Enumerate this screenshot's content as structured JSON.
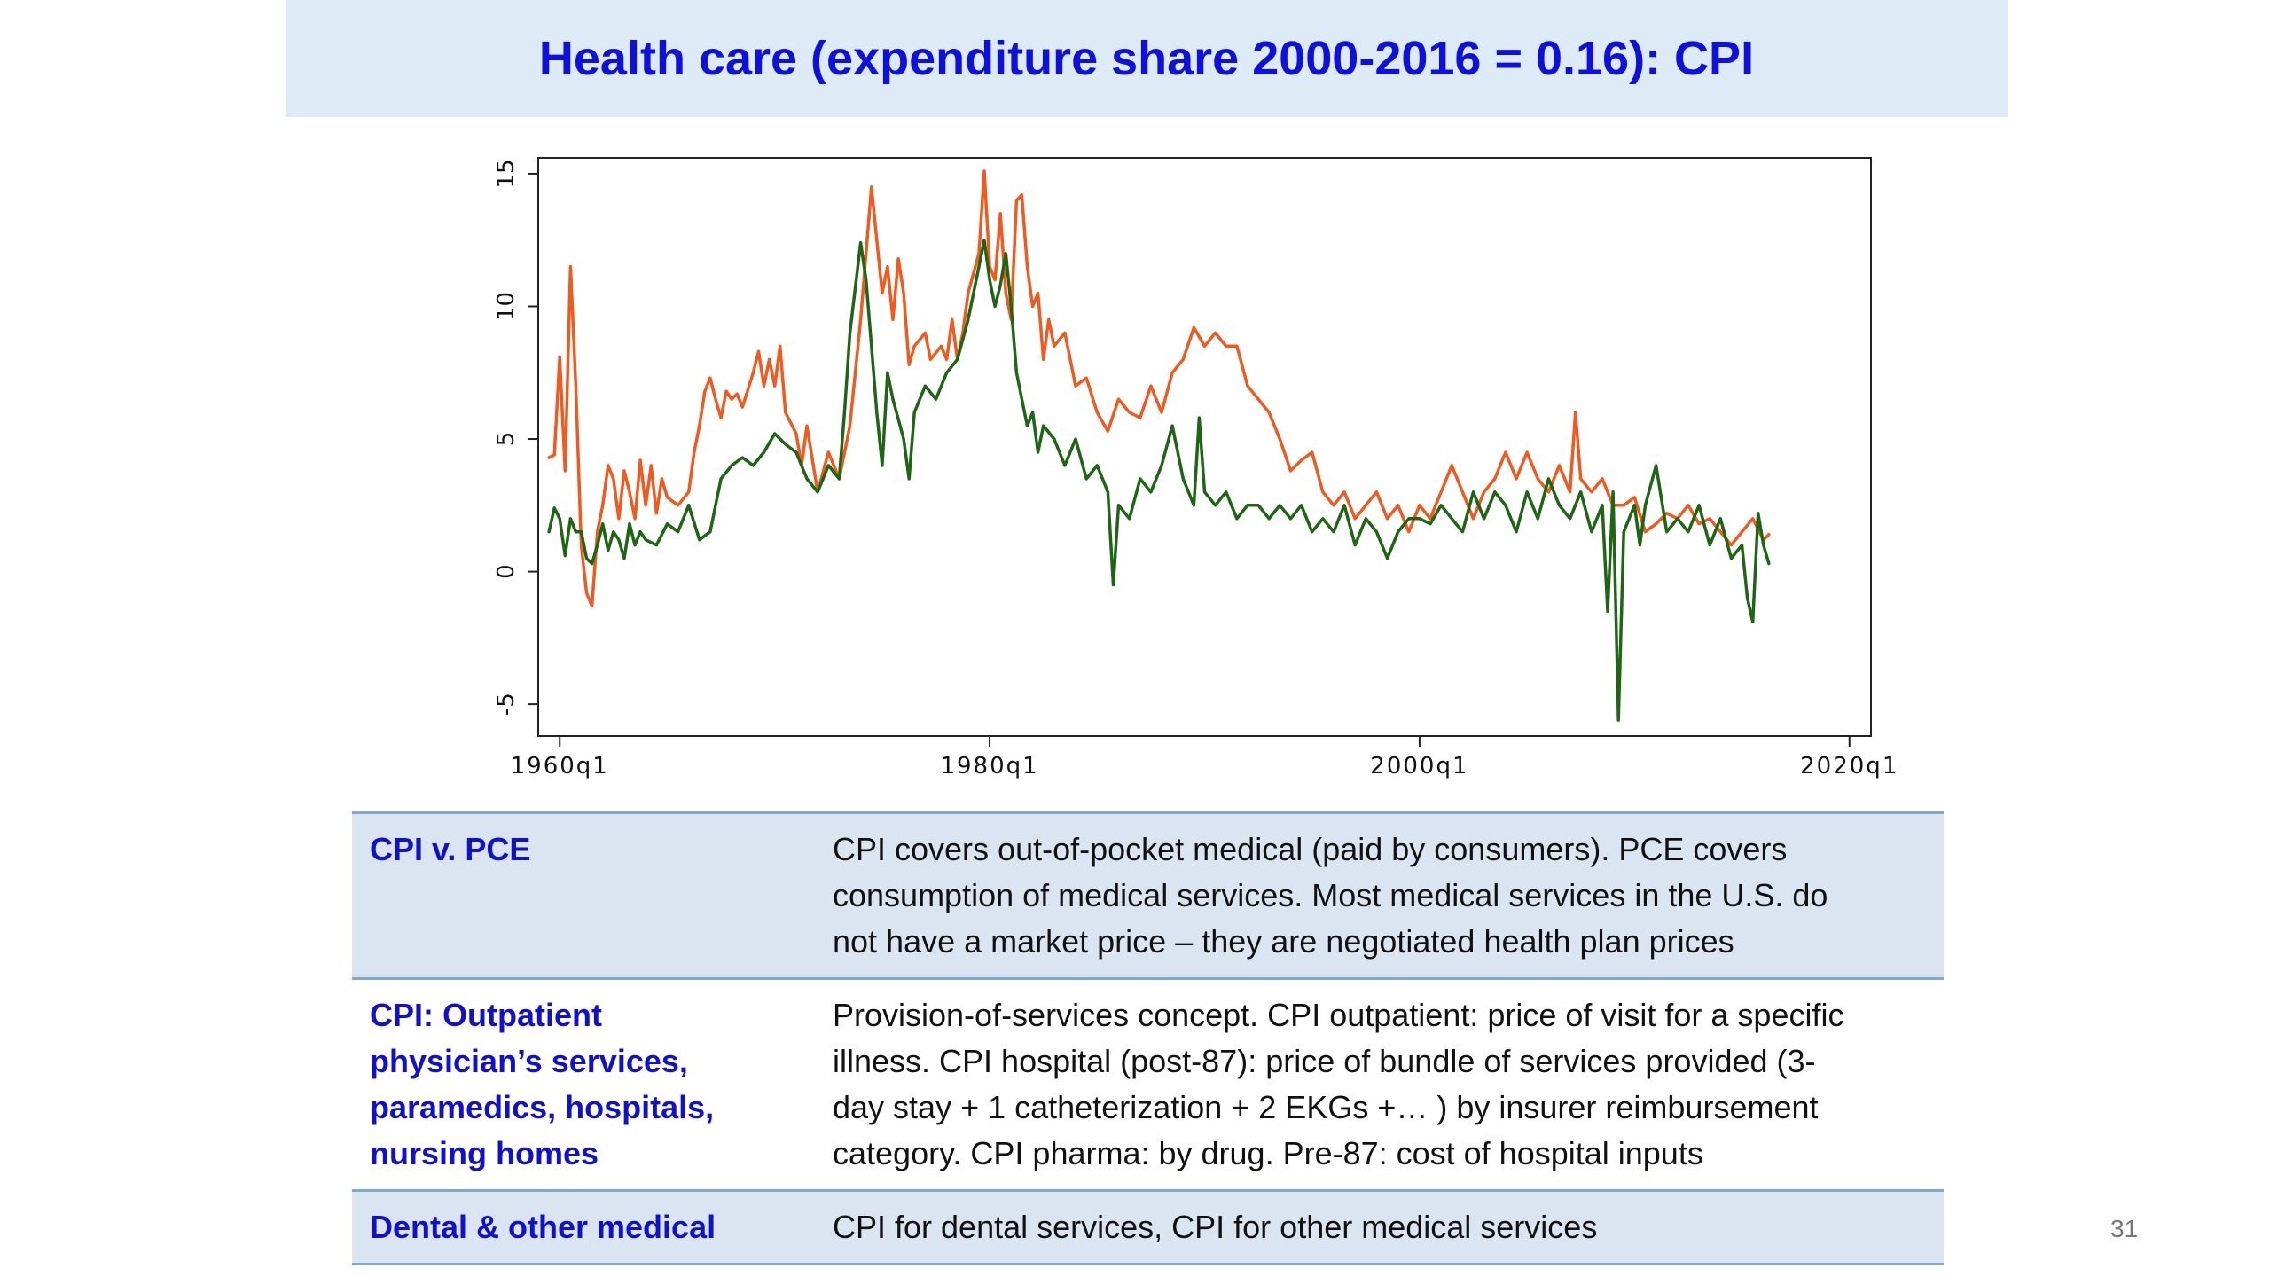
{
  "title": "Health care (expenditure share 2000-2016 = 0.16): CPI",
  "page_number": "31",
  "table": [
    {
      "label_lines": [
        "CPI v. PCE"
      ],
      "description_lines": [
        "CPI covers out-of-pocket medical (paid by consumers). PCE covers",
        "consumption of medical services. Most medical services in the U.S. do",
        "not have a market price – they are negotiated health plan prices"
      ]
    },
    {
      "label_lines": [
        "CPI: Outpatient",
        "physician’s services,",
        "paramedics, hospitals,",
        "nursing homes"
      ],
      "description_lines": [
        "Provision-of-services concept. CPI outpatient: price of visit for a specific",
        "illness. CPI hospital (post-87): price of bundle of services provided (3-",
        "day stay + 1 catheterization + 2 EKGs +… ) by insurer reimbursement",
        "category. CPI pharma: by drug. Pre-87: cost of hospital inputs"
      ]
    },
    {
      "label_lines": [
        "Dental &  other medical"
      ],
      "description_lines": [
        "CPI for dental services, CPI for other medical services"
      ]
    }
  ],
  "chart_data": {
    "type": "line",
    "title": "",
    "xlabel": "",
    "ylabel": "",
    "xlim": [
      1959.0,
      2021.0
    ],
    "ylim": [
      -6.2,
      15.6
    ],
    "x_ticks": [
      1960,
      1980,
      2000,
      2020
    ],
    "x_tick_labels": [
      "1960q1",
      "1980q1",
      "2000q1",
      "2020q1"
    ],
    "y_ticks": [
      -5,
      0,
      5,
      10,
      15
    ],
    "y_tick_labels": [
      "-5",
      "0",
      "5",
      "10",
      "15"
    ],
    "grid": false,
    "legend": "none",
    "series": [
      {
        "color": "#f05a1e",
        "points": [
          [
            1959.5,
            4.3
          ],
          [
            1959.75,
            4.4
          ],
          [
            1960.0,
            8.1
          ],
          [
            1960.25,
            3.8
          ],
          [
            1960.5,
            11.5
          ],
          [
            1960.75,
            7.0
          ],
          [
            1961.0,
            1.0
          ],
          [
            1961.25,
            -0.8
          ],
          [
            1961.5,
            -1.3
          ],
          [
            1961.75,
            1.5
          ],
          [
            1962.0,
            2.5
          ],
          [
            1962.25,
            4.0
          ],
          [
            1962.5,
            3.5
          ],
          [
            1962.75,
            2.0
          ],
          [
            1963.0,
            3.8
          ],
          [
            1963.25,
            3.0
          ],
          [
            1963.5,
            2.0
          ],
          [
            1963.75,
            4.2
          ],
          [
            1964.0,
            2.5
          ],
          [
            1964.25,
            4.0
          ],
          [
            1964.5,
            2.2
          ],
          [
            1964.75,
            3.5
          ],
          [
            1965.0,
            2.8
          ],
          [
            1965.5,
            2.5
          ],
          [
            1966.0,
            3.0
          ],
          [
            1966.25,
            4.5
          ],
          [
            1966.5,
            5.5
          ],
          [
            1966.75,
            6.8
          ],
          [
            1967.0,
            7.3
          ],
          [
            1967.25,
            6.5
          ],
          [
            1967.5,
            5.8
          ],
          [
            1967.75,
            6.8
          ],
          [
            1968.0,
            6.5
          ],
          [
            1968.25,
            6.7
          ],
          [
            1968.5,
            6.2
          ],
          [
            1969.0,
            7.5
          ],
          [
            1969.25,
            8.3
          ],
          [
            1969.5,
            7.0
          ],
          [
            1969.75,
            8.0
          ],
          [
            1970.0,
            7.0
          ],
          [
            1970.25,
            8.5
          ],
          [
            1970.5,
            6.0
          ],
          [
            1971.0,
            5.2
          ],
          [
            1971.25,
            4.0
          ],
          [
            1971.5,
            5.5
          ],
          [
            1972.0,
            3.0
          ],
          [
            1972.5,
            4.5
          ],
          [
            1973.0,
            3.5
          ],
          [
            1973.5,
            5.5
          ],
          [
            1974.0,
            9.5
          ],
          [
            1974.25,
            12.0
          ],
          [
            1974.5,
            14.5
          ],
          [
            1974.75,
            12.5
          ],
          [
            1975.0,
            10.5
          ],
          [
            1975.25,
            11.5
          ],
          [
            1975.5,
            9.5
          ],
          [
            1975.75,
            11.8
          ],
          [
            1976.0,
            10.5
          ],
          [
            1976.25,
            7.8
          ],
          [
            1976.5,
            8.5
          ],
          [
            1977.0,
            9.0
          ],
          [
            1977.25,
            8.0
          ],
          [
            1977.75,
            8.5
          ],
          [
            1978.0,
            8.0
          ],
          [
            1978.25,
            9.5
          ],
          [
            1978.5,
            8.0
          ],
          [
            1978.75,
            9.0
          ],
          [
            1979.0,
            10.5
          ],
          [
            1979.5,
            12.0
          ],
          [
            1979.75,
            15.1
          ],
          [
            1980.0,
            11.5
          ],
          [
            1980.25,
            11.0
          ],
          [
            1980.5,
            13.5
          ],
          [
            1980.75,
            10.5
          ],
          [
            1981.0,
            9.5
          ],
          [
            1981.25,
            14.0
          ],
          [
            1981.5,
            14.2
          ],
          [
            1981.75,
            11.5
          ],
          [
            1982.0,
            10.0
          ],
          [
            1982.25,
            10.5
          ],
          [
            1982.5,
            8.0
          ],
          [
            1982.75,
            9.5
          ],
          [
            1983.0,
            8.5
          ],
          [
            1983.5,
            9.0
          ],
          [
            1984.0,
            7.0
          ],
          [
            1984.5,
            7.3
          ],
          [
            1985.0,
            6.0
          ],
          [
            1985.5,
            5.3
          ],
          [
            1986.0,
            6.5
          ],
          [
            1986.5,
            6.0
          ],
          [
            1987.0,
            5.8
          ],
          [
            1987.5,
            7.0
          ],
          [
            1988.0,
            6.0
          ],
          [
            1988.5,
            7.5
          ],
          [
            1989.0,
            8.0
          ],
          [
            1989.5,
            9.2
          ],
          [
            1990.0,
            8.5
          ],
          [
            1990.5,
            9.0
          ],
          [
            1991.0,
            8.5
          ],
          [
            1991.5,
            8.5
          ],
          [
            1992.0,
            7.0
          ],
          [
            1992.5,
            6.5
          ],
          [
            1993.0,
            6.0
          ],
          [
            1993.5,
            5.0
          ],
          [
            1994.0,
            3.8
          ],
          [
            1994.5,
            4.2
          ],
          [
            1995.0,
            4.5
          ],
          [
            1995.5,
            3.0
          ],
          [
            1996.0,
            2.5
          ],
          [
            1996.5,
            3.0
          ],
          [
            1997.0,
            2.0
          ],
          [
            1997.5,
            2.5
          ],
          [
            1998.0,
            3.0
          ],
          [
            1998.5,
            2.0
          ],
          [
            1999.0,
            2.5
          ],
          [
            1999.5,
            1.5
          ],
          [
            2000.0,
            2.5
          ],
          [
            2000.5,
            2.0
          ],
          [
            2001.0,
            3.0
          ],
          [
            2001.5,
            4.0
          ],
          [
            2002.0,
            3.0
          ],
          [
            2002.5,
            2.0
          ],
          [
            2003.0,
            3.0
          ],
          [
            2003.5,
            3.5
          ],
          [
            2004.0,
            4.5
          ],
          [
            2004.5,
            3.5
          ],
          [
            2005.0,
            4.5
          ],
          [
            2005.5,
            3.5
          ],
          [
            2006.0,
            3.0
          ],
          [
            2006.5,
            4.0
          ],
          [
            2007.0,
            3.0
          ],
          [
            2007.25,
            6.0
          ],
          [
            2007.5,
            3.5
          ],
          [
            2008.0,
            3.0
          ],
          [
            2008.5,
            3.5
          ],
          [
            2009.0,
            2.5
          ],
          [
            2009.5,
            2.5
          ],
          [
            2010.0,
            2.8
          ],
          [
            2010.5,
            1.5
          ],
          [
            2011.0,
            1.8
          ],
          [
            2011.5,
            2.2
          ],
          [
            2012.0,
            2.0
          ],
          [
            2012.5,
            2.5
          ],
          [
            2013.0,
            1.8
          ],
          [
            2013.5,
            2.0
          ],
          [
            2014.0,
            1.5
          ],
          [
            2014.5,
            1.0
          ],
          [
            2015.0,
            1.5
          ],
          [
            2015.5,
            2.0
          ],
          [
            2016.0,
            1.2
          ],
          [
            2016.25,
            1.4
          ]
        ]
      },
      {
        "color": "#1e6614",
        "points": [
          [
            1959.5,
            1.5
          ],
          [
            1959.75,
            2.4
          ],
          [
            1960.0,
            2.0
          ],
          [
            1960.25,
            0.6
          ],
          [
            1960.5,
            2.0
          ],
          [
            1960.75,
            1.5
          ],
          [
            1961.0,
            1.5
          ],
          [
            1961.25,
            0.5
          ],
          [
            1961.5,
            0.3
          ],
          [
            1961.75,
            1.0
          ],
          [
            1962.0,
            1.8
          ],
          [
            1962.25,
            0.8
          ],
          [
            1962.5,
            1.5
          ],
          [
            1962.75,
            1.2
          ],
          [
            1963.0,
            0.5
          ],
          [
            1963.25,
            1.8
          ],
          [
            1963.5,
            1.0
          ],
          [
            1963.75,
            1.5
          ],
          [
            1964.0,
            1.2
          ],
          [
            1964.5,
            1.0
          ],
          [
            1965.0,
            1.8
          ],
          [
            1965.5,
            1.5
          ],
          [
            1966.0,
            2.5
          ],
          [
            1966.5,
            1.2
          ],
          [
            1967.0,
            1.5
          ],
          [
            1967.5,
            3.5
          ],
          [
            1968.0,
            4.0
          ],
          [
            1968.5,
            4.3
          ],
          [
            1969.0,
            4.0
          ],
          [
            1969.5,
            4.5
          ],
          [
            1970.0,
            5.2
          ],
          [
            1970.5,
            4.8
          ],
          [
            1971.0,
            4.5
          ],
          [
            1971.5,
            3.5
          ],
          [
            1972.0,
            3.0
          ],
          [
            1972.5,
            4.0
          ],
          [
            1973.0,
            3.5
          ],
          [
            1973.25,
            6.0
          ],
          [
            1973.5,
            9.0
          ],
          [
            1974.0,
            12.4
          ],
          [
            1974.25,
            11.0
          ],
          [
            1974.5,
            8.5
          ],
          [
            1974.75,
            6.0
          ],
          [
            1975.0,
            4.0
          ],
          [
            1975.25,
            7.5
          ],
          [
            1975.5,
            6.5
          ],
          [
            1976.0,
            5.0
          ],
          [
            1976.25,
            3.5
          ],
          [
            1976.5,
            6.0
          ],
          [
            1977.0,
            7.0
          ],
          [
            1977.5,
            6.5
          ],
          [
            1978.0,
            7.5
          ],
          [
            1978.5,
            8.0
          ],
          [
            1979.0,
            9.5
          ],
          [
            1979.5,
            11.5
          ],
          [
            1979.75,
            12.5
          ],
          [
            1980.0,
            11.0
          ],
          [
            1980.25,
            10.0
          ],
          [
            1980.5,
            10.8
          ],
          [
            1980.75,
            12.0
          ],
          [
            1981.0,
            10.0
          ],
          [
            1981.25,
            7.5
          ],
          [
            1981.5,
            6.5
          ],
          [
            1981.75,
            5.5
          ],
          [
            1982.0,
            6.0
          ],
          [
            1982.25,
            4.5
          ],
          [
            1982.5,
            5.5
          ],
          [
            1983.0,
            5.0
          ],
          [
            1983.5,
            4.0
          ],
          [
            1984.0,
            5.0
          ],
          [
            1984.5,
            3.5
          ],
          [
            1985.0,
            4.0
          ],
          [
            1985.5,
            3.0
          ],
          [
            1985.75,
            -0.5
          ],
          [
            1986.0,
            2.5
          ],
          [
            1986.5,
            2.0
          ],
          [
            1987.0,
            3.5
          ],
          [
            1987.5,
            3.0
          ],
          [
            1988.0,
            4.0
          ],
          [
            1988.5,
            5.5
          ],
          [
            1989.0,
            3.5
          ],
          [
            1989.5,
            2.5
          ],
          [
            1989.75,
            5.8
          ],
          [
            1990.0,
            3.0
          ],
          [
            1990.5,
            2.5
          ],
          [
            1991.0,
            3.0
          ],
          [
            1991.5,
            2.0
          ],
          [
            1992.0,
            2.5
          ],
          [
            1992.5,
            2.5
          ],
          [
            1993.0,
            2.0
          ],
          [
            1993.5,
            2.5
          ],
          [
            1994.0,
            2.0
          ],
          [
            1994.5,
            2.5
          ],
          [
            1995.0,
            1.5
          ],
          [
            1995.5,
            2.0
          ],
          [
            1996.0,
            1.5
          ],
          [
            1996.5,
            2.5
          ],
          [
            1997.0,
            1.0
          ],
          [
            1997.5,
            2.0
          ],
          [
            1998.0,
            1.5
          ],
          [
            1998.5,
            0.5
          ],
          [
            1999.0,
            1.5
          ],
          [
            1999.5,
            2.0
          ],
          [
            2000.0,
            2.0
          ],
          [
            2000.5,
            1.8
          ],
          [
            2001.0,
            2.5
          ],
          [
            2001.5,
            2.0
          ],
          [
            2002.0,
            1.5
          ],
          [
            2002.5,
            3.0
          ],
          [
            2003.0,
            2.0
          ],
          [
            2003.5,
            3.0
          ],
          [
            2004.0,
            2.5
          ],
          [
            2004.5,
            1.5
          ],
          [
            2005.0,
            3.0
          ],
          [
            2005.5,
            2.0
          ],
          [
            2006.0,
            3.5
          ],
          [
            2006.5,
            2.5
          ],
          [
            2007.0,
            2.0
          ],
          [
            2007.5,
            3.0
          ],
          [
            2008.0,
            1.5
          ],
          [
            2008.5,
            2.5
          ],
          [
            2008.75,
            -1.5
          ],
          [
            2009.0,
            3.0
          ],
          [
            2009.25,
            -5.6
          ],
          [
            2009.5,
            1.5
          ],
          [
            2010.0,
            2.5
          ],
          [
            2010.25,
            1.0
          ],
          [
            2010.5,
            2.5
          ],
          [
            2011.0,
            4.0
          ],
          [
            2011.5,
            1.5
          ],
          [
            2012.0,
            2.0
          ],
          [
            2012.5,
            1.5
          ],
          [
            2013.0,
            2.5
          ],
          [
            2013.5,
            1.0
          ],
          [
            2014.0,
            2.0
          ],
          [
            2014.5,
            0.5
          ],
          [
            2015.0,
            1.0
          ],
          [
            2015.25,
            -1.0
          ],
          [
            2015.5,
            -1.9
          ],
          [
            2015.75,
            2.2
          ],
          [
            2016.0,
            1.0
          ],
          [
            2016.25,
            0.3
          ]
        ]
      }
    ]
  }
}
